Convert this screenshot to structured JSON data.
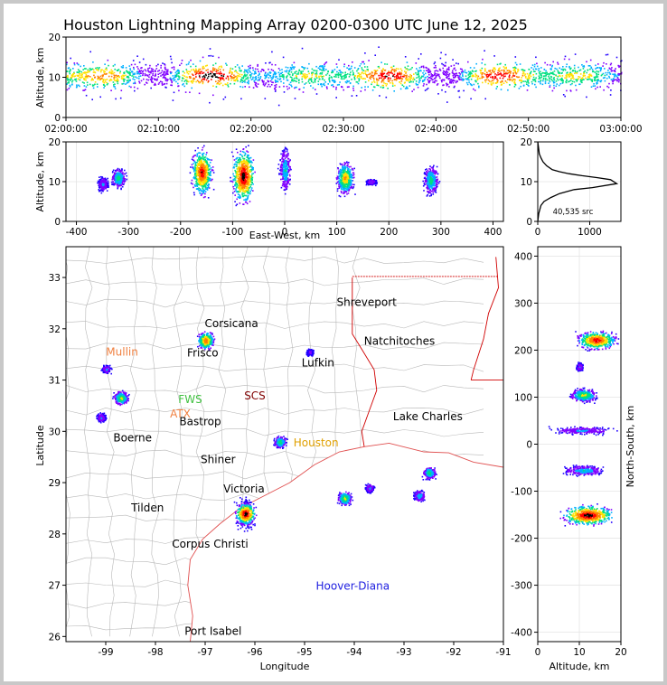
{
  "title": "Houston Lightning Mapping Array 0200-0300 UTC June 12, 2025",
  "colors": {
    "frame": "#c8c8c8",
    "density_scale": [
      "#2000ff",
      "#8000ff",
      "#00b0ff",
      "#00e080",
      "#ffe000",
      "#ff8000",
      "#ff0000",
      "#000000"
    ],
    "state_borders": "#d00000",
    "counties": "#b0b0b0",
    "coast": "#e05050"
  },
  "chart_data": [
    {
      "name": "altitude-time",
      "type": "heatmap",
      "ylabel": "Altitude, km",
      "ylim": [
        0,
        20
      ],
      "yticks": [
        "0",
        "10",
        "20"
      ],
      "xticks": [
        "02:00:00",
        "02:10:00",
        "02:20:00",
        "02:30:00",
        "02:40:00",
        "02:50:00",
        "03:00:00"
      ],
      "band_km": [
        6,
        16
      ],
      "peak_km": 10.5
    },
    {
      "name": "altitude-east-west",
      "type": "heatmap",
      "xlabel": "East-West, km",
      "ylabel": "Altitude, km",
      "xlim": [
        -420,
        420
      ],
      "ylim": [
        0,
        20
      ],
      "xticks": [
        "-400",
        "-300",
        "-200",
        "-100",
        "0",
        "100",
        "200",
        "300",
        "400"
      ],
      "yticks": [
        "0",
        "10",
        "20"
      ],
      "clusters_km": [
        {
          "x": -350,
          "alt": [
            7,
            12
          ],
          "intensity": 0.3
        },
        {
          "x": -320,
          "alt": [
            8,
            14
          ],
          "intensity": 0.5
        },
        {
          "x": -160,
          "alt": [
            5,
            20
          ],
          "intensity": 0.9
        },
        {
          "x": -80,
          "alt": [
            3,
            20
          ],
          "intensity": 1.0
        },
        {
          "x": 0,
          "alt": [
            6,
            20
          ],
          "intensity": 0.4
        },
        {
          "x": 115,
          "alt": [
            6,
            16
          ],
          "intensity": 0.7
        },
        {
          "x": 165,
          "alt": [
            9,
            11
          ],
          "intensity": 0.3
        },
        {
          "x": 280,
          "alt": [
            6,
            15
          ],
          "intensity": 0.5
        }
      ]
    },
    {
      "name": "altitude-histogram",
      "type": "line",
      "xlim": [
        0,
        1600
      ],
      "ylim": [
        0,
        20
      ],
      "xticks": [
        "0",
        "1000"
      ],
      "yticks": [
        "0",
        "10",
        "20"
      ],
      "annotation": "40,535 src",
      "x": [
        0,
        20,
        60,
        120,
        250,
        420,
        700,
        1050,
        1520,
        1400,
        1150,
        850,
        600,
        420,
        280,
        170,
        100,
        60,
        30,
        10,
        0
      ],
      "y": [
        0,
        2,
        4,
        5,
        6,
        7,
        8,
        8.5,
        9.5,
        10.5,
        11,
        11.5,
        12,
        12.5,
        13,
        14,
        15,
        16,
        17,
        19,
        20
      ]
    },
    {
      "name": "plan-view-map",
      "type": "scatter",
      "xlabel": "Longitude",
      "ylabel": "Latitude",
      "xlim": [
        -99.8,
        -91
      ],
      "ylim": [
        25.9,
        33.6
      ],
      "xticks": [
        "-99",
        "-98",
        "-97",
        "-96",
        "-95",
        "-94",
        "-93",
        "-92",
        "-91"
      ],
      "yticks": [
        "26",
        "27",
        "28",
        "29",
        "30",
        "31",
        "32",
        "33"
      ],
      "places": [
        {
          "name": "Shreveport",
          "lon": -93.75,
          "lat": 32.52,
          "color": "#000000"
        },
        {
          "name": "Corsicana",
          "lon": -96.47,
          "lat": 32.1,
          "color": "#000000"
        },
        {
          "name": "Natchitoches",
          "lon": -93.09,
          "lat": 31.76,
          "color": "#000000"
        },
        {
          "name": "Mullin",
          "lon": -98.67,
          "lat": 31.55,
          "color": "#f08040"
        },
        {
          "name": "Frisco",
          "lon": -97.05,
          "lat": 31.53,
          "color": "#000000"
        },
        {
          "name": "Lufkin",
          "lon": -94.73,
          "lat": 31.34,
          "color": "#000000"
        },
        {
          "name": "FWS",
          "lon": -97.3,
          "lat": 30.62,
          "color": "#40c040"
        },
        {
          "name": "SCS",
          "lon": -96.0,
          "lat": 30.69,
          "color": "#800000"
        },
        {
          "name": "ATX",
          "lon": -97.5,
          "lat": 30.34,
          "color": "#f08040"
        },
        {
          "name": "Bastrop",
          "lon": -97.1,
          "lat": 30.19,
          "color": "#000000"
        },
        {
          "name": "Lake Charles",
          "lon": -92.52,
          "lat": 30.29,
          "color": "#000000"
        },
        {
          "name": "Boerne",
          "lon": -98.46,
          "lat": 29.87,
          "color": "#000000"
        },
        {
          "name": "Houston",
          "lon": -94.77,
          "lat": 29.78,
          "color": "#e0a000"
        },
        {
          "name": "Shiner",
          "lon": -96.74,
          "lat": 29.45,
          "color": "#000000"
        },
        {
          "name": "Victoria",
          "lon": -96.22,
          "lat": 28.88,
          "color": "#000000"
        },
        {
          "name": "Tilden",
          "lon": -98.16,
          "lat": 28.51,
          "color": "#000000"
        },
        {
          "name": "Corpus Christi",
          "lon": -96.9,
          "lat": 27.8,
          "color": "#000000"
        },
        {
          "name": "Hoover-Diana",
          "lon": -94.03,
          "lat": 26.98,
          "color": "#2020e0"
        },
        {
          "name": "Port Isabel",
          "lon": -96.84,
          "lat": 26.1,
          "color": "#000000"
        }
      ],
      "clusters": [
        {
          "lon": -97.0,
          "lat": 31.78,
          "intensity": 0.8
        },
        {
          "lon": -99.0,
          "lat": 31.22,
          "intensity": 0.3
        },
        {
          "lon": -98.7,
          "lat": 30.66,
          "intensity": 0.6
        },
        {
          "lon": -99.1,
          "lat": 30.28,
          "intensity": 0.3
        },
        {
          "lon": -94.9,
          "lat": 31.55,
          "intensity": 0.2
        },
        {
          "lon": -95.5,
          "lat": 29.8,
          "intensity": 0.5
        },
        {
          "lon": -96.2,
          "lat": 28.4,
          "intensity": 1.0
        },
        {
          "lon": -94.2,
          "lat": 28.7,
          "intensity": 0.6
        },
        {
          "lon": -93.7,
          "lat": 28.9,
          "intensity": 0.3
        },
        {
          "lon": -92.5,
          "lat": 29.2,
          "intensity": 0.5
        },
        {
          "lon": -92.7,
          "lat": 28.75,
          "intensity": 0.4
        }
      ]
    },
    {
      "name": "north-south-altitude",
      "type": "heatmap",
      "xlabel": "Altitude, km",
      "ylabel": "North-South, km",
      "xlim": [
        0,
        20
      ],
      "ylim": [
        -420,
        420
      ],
      "xticks": [
        "0",
        "10",
        "20"
      ],
      "yticks": [
        "-400",
        "-300",
        "-200",
        "-100",
        "0",
        "100",
        "200",
        "300",
        "400"
      ],
      "clusters_km": [
        {
          "y": 222,
          "alt": [
            8,
            20
          ],
          "intensity": 0.9
        },
        {
          "y": 165,
          "alt": [
            9,
            11
          ],
          "intensity": 0.3
        },
        {
          "y": 105,
          "alt": [
            7,
            15
          ],
          "intensity": 0.6
        },
        {
          "y": 30,
          "alt": [
            1,
            20
          ],
          "intensity": 0.3
        },
        {
          "y": -55,
          "alt": [
            5,
            17
          ],
          "intensity": 0.4
        },
        {
          "y": -150,
          "alt": [
            4,
            20
          ],
          "intensity": 1.0
        }
      ]
    }
  ]
}
